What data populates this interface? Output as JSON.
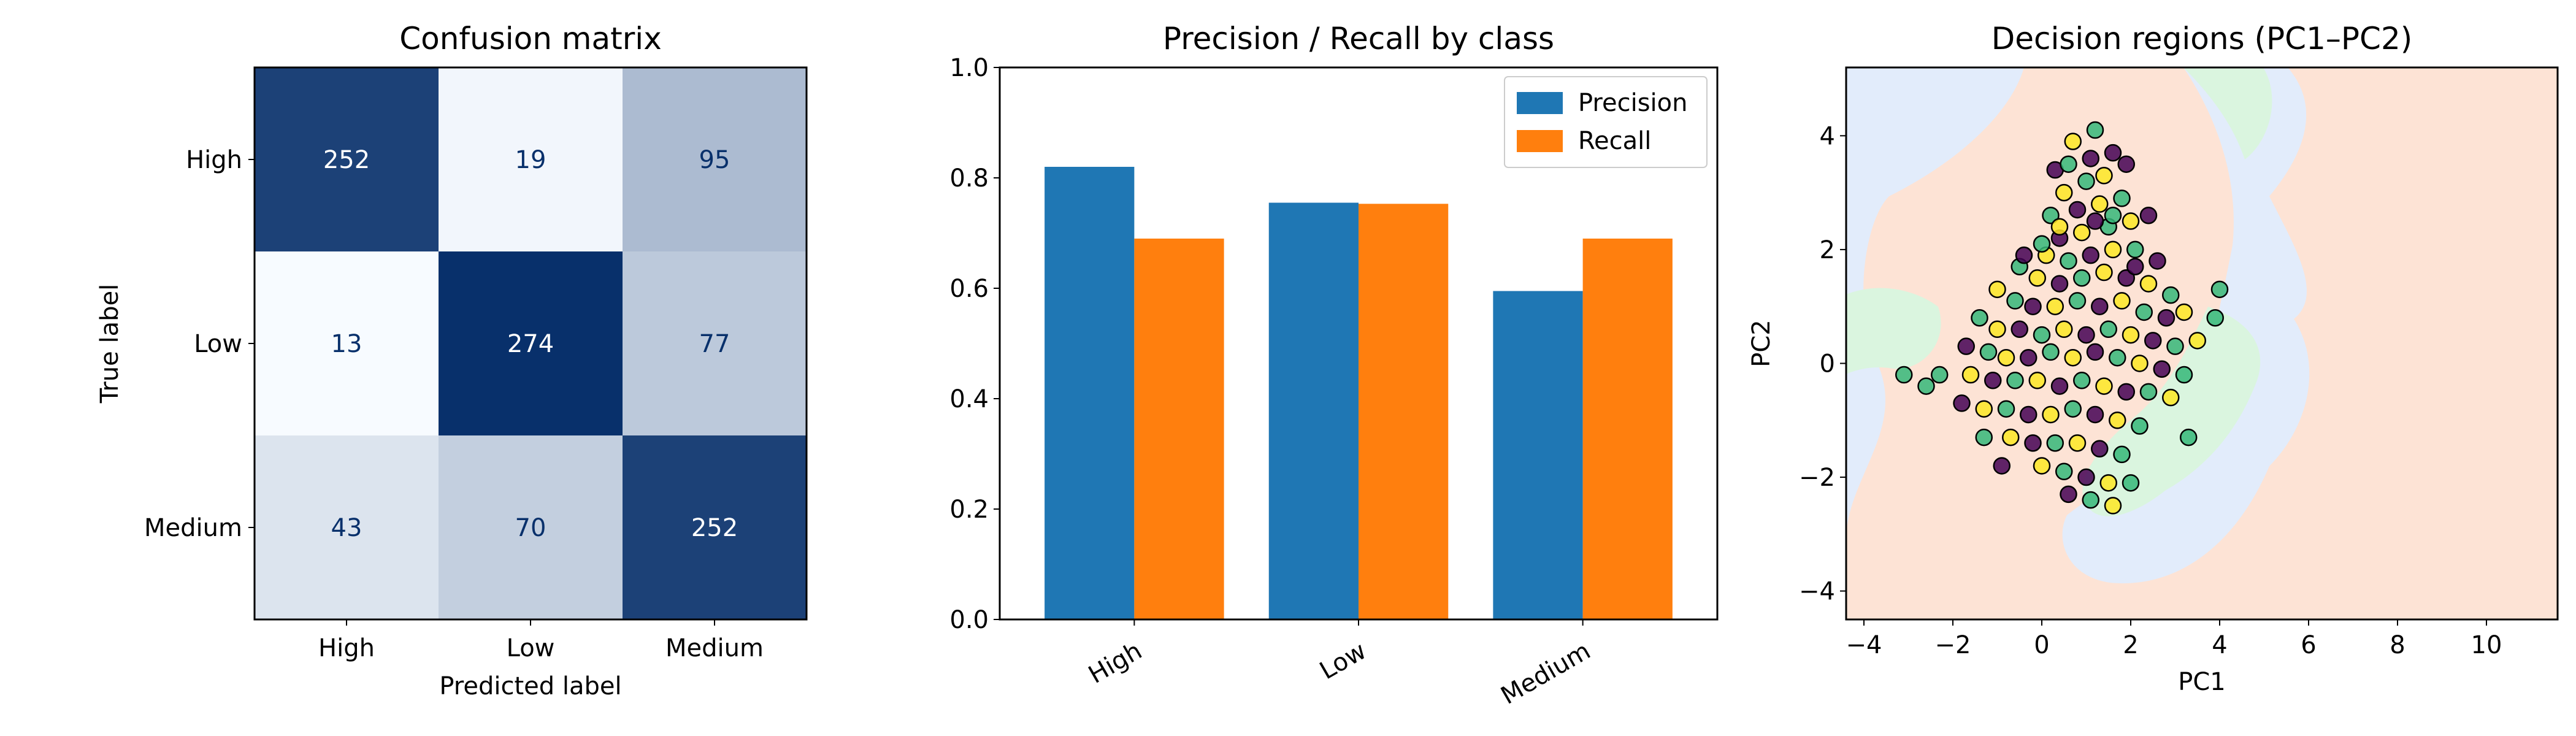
{
  "figure": {
    "background": "#ffffff"
  },
  "chart_data": [
    {
      "type": "heatmap",
      "title": "Confusion matrix",
      "xlabel": "Predicted label",
      "ylabel": "True label",
      "x_categories": [
        "High",
        "Low",
        "Medium"
      ],
      "y_categories": [
        "High",
        "Low",
        "Medium"
      ],
      "values": [
        [
          252,
          19,
          95
        ],
        [
          13,
          274,
          77
        ],
        [
          43,
          70,
          252
        ]
      ],
      "colormap": "Blues",
      "text_colors": {
        "dark": "#ffffff",
        "light": "#08306b"
      }
    },
    {
      "type": "bar",
      "title": "Precision / Recall by class",
      "categories": [
        "High",
        "Low",
        "Medium"
      ],
      "series": [
        {
          "name": "Precision",
          "color": "#1f77b4",
          "values": [
            0.82,
            0.755,
            0.595
          ]
        },
        {
          "name": "Recall",
          "color": "#ff7f0e",
          "values": [
            0.69,
            0.753,
            0.69
          ]
        }
      ],
      "ylim": [
        0,
        1.0
      ],
      "yticks": [
        "0.0",
        "0.2",
        "0.4",
        "0.6",
        "0.8",
        "1.0"
      ],
      "legend": "top-right",
      "xtick_rotation": 30
    },
    {
      "type": "scatter",
      "title": "Decision regions (PC1–PC2)",
      "xlabel": "PC1",
      "ylabel": "PC2",
      "xlim": [
        -4.4,
        11.6
      ],
      "ylim": [
        -4.5,
        5.2
      ],
      "xticks": [
        -4,
        -2,
        0,
        2,
        4,
        6,
        8,
        10
      ],
      "yticks": [
        -4,
        -2,
        0,
        2,
        4
      ],
      "region_colors": {
        "High": "#fde3d5",
        "Low": "#e2ecfb",
        "Medium": "#daf5df"
      },
      "point_colors": [
        "#440154",
        "#35b779",
        "#fde725"
      ],
      "points": [
        [
          0.3,
          3.4,
          0
        ],
        [
          0.7,
          3.9,
          2
        ],
        [
          1.2,
          4.1,
          1
        ],
        [
          1.6,
          3.7,
          0
        ],
        [
          0.5,
          3.0,
          2
        ],
        [
          1.0,
          3.2,
          1
        ],
        [
          1.4,
          3.3,
          2
        ],
        [
          1.9,
          3.5,
          0
        ],
        [
          0.2,
          2.6,
          1
        ],
        [
          0.8,
          2.7,
          0
        ],
        [
          1.3,
          2.8,
          2
        ],
        [
          1.8,
          2.9,
          1
        ],
        [
          0.4,
          2.2,
          0
        ],
        [
          0.9,
          2.3,
          2
        ],
        [
          1.5,
          2.4,
          1
        ],
        [
          2.0,
          2.5,
          2
        ],
        [
          2.4,
          2.6,
          0
        ],
        [
          0.1,
          1.9,
          2
        ],
        [
          0.6,
          1.8,
          1
        ],
        [
          1.1,
          1.9,
          0
        ],
        [
          1.6,
          2.0,
          2
        ],
        [
          2.1,
          2.0,
          1
        ],
        [
          2.6,
          1.8,
          0
        ],
        [
          -0.5,
          1.7,
          1
        ],
        [
          -0.1,
          1.5,
          2
        ],
        [
          0.4,
          1.4,
          0
        ],
        [
          0.9,
          1.5,
          1
        ],
        [
          1.4,
          1.6,
          2
        ],
        [
          1.9,
          1.5,
          0
        ],
        [
          2.4,
          1.4,
          2
        ],
        [
          2.9,
          1.2,
          1
        ],
        [
          -1.0,
          1.3,
          2
        ],
        [
          -0.6,
          1.1,
          1
        ],
        [
          -0.2,
          1.0,
          0
        ],
        [
          0.3,
          1.0,
          2
        ],
        [
          0.8,
          1.1,
          1
        ],
        [
          1.3,
          1.0,
          0
        ],
        [
          1.8,
          1.1,
          2
        ],
        [
          2.3,
          0.9,
          1
        ],
        [
          2.8,
          0.8,
          0
        ],
        [
          3.2,
          0.9,
          2
        ],
        [
          -1.4,
          0.8,
          1
        ],
        [
          -1.0,
          0.6,
          2
        ],
        [
          -0.5,
          0.6,
          0
        ],
        [
          0.0,
          0.5,
          1
        ],
        [
          0.5,
          0.6,
          2
        ],
        [
          1.0,
          0.5,
          0
        ],
        [
          1.5,
          0.6,
          1
        ],
        [
          2.0,
          0.5,
          2
        ],
        [
          2.5,
          0.4,
          0
        ],
        [
          3.0,
          0.3,
          1
        ],
        [
          3.5,
          0.4,
          2
        ],
        [
          -1.7,
          0.3,
          0
        ],
        [
          -1.2,
          0.2,
          1
        ],
        [
          -0.8,
          0.1,
          2
        ],
        [
          -0.3,
          0.1,
          0
        ],
        [
          0.2,
          0.2,
          1
        ],
        [
          0.7,
          0.1,
          2
        ],
        [
          1.2,
          0.2,
          0
        ],
        [
          1.7,
          0.1,
          1
        ],
        [
          2.2,
          0.0,
          2
        ],
        [
          2.7,
          -0.1,
          0
        ],
        [
          3.2,
          -0.2,
          1
        ],
        [
          -2.3,
          -0.2,
          1
        ],
        [
          -1.6,
          -0.2,
          2
        ],
        [
          -1.1,
          -0.3,
          0
        ],
        [
          -0.6,
          -0.3,
          1
        ],
        [
          -0.1,
          -0.3,
          2
        ],
        [
          0.4,
          -0.4,
          0
        ],
        [
          0.9,
          -0.3,
          1
        ],
        [
          1.4,
          -0.4,
          2
        ],
        [
          1.9,
          -0.5,
          0
        ],
        [
          2.4,
          -0.5,
          1
        ],
        [
          2.9,
          -0.6,
          2
        ],
        [
          -1.8,
          -0.7,
          0
        ],
        [
          -1.3,
          -0.8,
          2
        ],
        [
          -0.8,
          -0.8,
          1
        ],
        [
          -0.3,
          -0.9,
          0
        ],
        [
          0.2,
          -0.9,
          2
        ],
        [
          0.7,
          -0.8,
          1
        ],
        [
          1.2,
          -0.9,
          0
        ],
        [
          1.7,
          -1.0,
          2
        ],
        [
          2.2,
          -1.1,
          1
        ],
        [
          -1.3,
          -1.3,
          1
        ],
        [
          -0.7,
          -1.3,
          2
        ],
        [
          -0.2,
          -1.4,
          0
        ],
        [
          0.3,
          -1.4,
          1
        ],
        [
          0.8,
          -1.4,
          2
        ],
        [
          1.3,
          -1.5,
          0
        ],
        [
          1.8,
          -1.6,
          1
        ],
        [
          -0.9,
          -1.8,
          0
        ],
        [
          0.0,
          -1.8,
          2
        ],
        [
          0.5,
          -1.9,
          1
        ],
        [
          1.0,
          -2.0,
          0
        ],
        [
          1.5,
          -2.1,
          2
        ],
        [
          2.0,
          -2.1,
          1
        ],
        [
          0.6,
          -2.3,
          0
        ],
        [
          1.1,
          -2.4,
          1
        ],
        [
          1.6,
          -2.5,
          2
        ],
        [
          -0.4,
          1.9,
          0
        ],
        [
          0.0,
          2.1,
          1
        ],
        [
          0.4,
          2.4,
          2
        ],
        [
          1.2,
          2.5,
          0
        ],
        [
          1.6,
          2.6,
          1
        ],
        [
          2.1,
          1.7,
          0
        ],
        [
          1.1,
          3.6,
          0
        ],
        [
          0.6,
          3.5,
          1
        ],
        [
          -3.1,
          -0.2,
          1
        ],
        [
          -2.6,
          -0.4,
          1
        ],
        [
          4.0,
          1.3,
          1
        ],
        [
          3.9,
          0.8,
          1
        ],
        [
          3.3,
          -1.3,
          1
        ]
      ]
    }
  ]
}
